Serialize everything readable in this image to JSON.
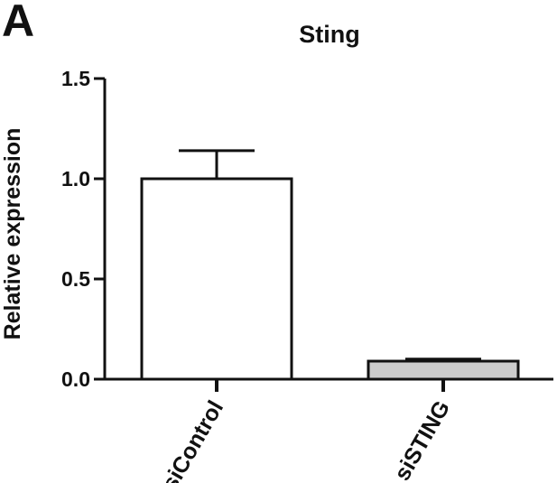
{
  "panel_label": "A",
  "chart_data": {
    "type": "bar",
    "title": "Sting",
    "ylabel": "Relative expression",
    "xlabel": "",
    "categories": [
      "siControl",
      "siSTING"
    ],
    "values": [
      1.0,
      0.09
    ],
    "error_upper": [
      1.14,
      0.1
    ],
    "bar_colors": [
      "#ffffff",
      "#cccccc"
    ],
    "ylim": [
      0,
      1.5
    ],
    "yticks": [
      0.0,
      0.5,
      1.0,
      1.5
    ],
    "ytick_labels": [
      "0.0",
      "0.5",
      "1.0",
      "1.5"
    ],
    "grid": false,
    "legend": "none"
  }
}
